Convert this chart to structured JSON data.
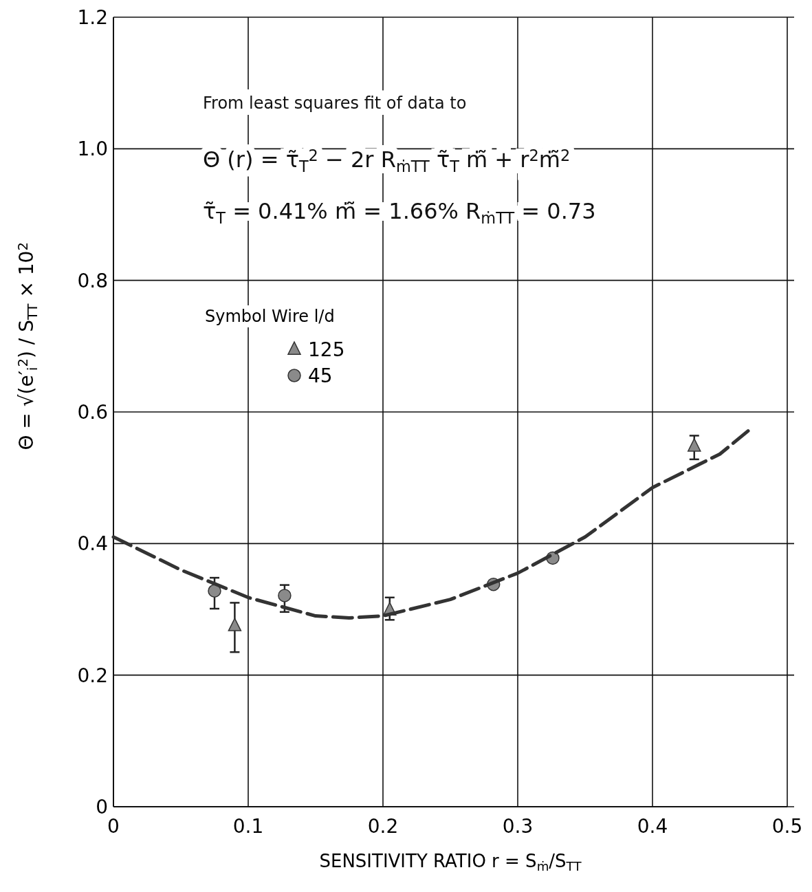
{
  "chart_data": {
    "type": "scatter",
    "xlabel": "SENSITIVITY RATIO   r = S$_{ṁ}$/S$_{TT}$",
    "ylabel": "Θ = √(e′$_{i}$$^{2}$) / S$_{TT}$  × 10$^{2}$",
    "legend_title": "Symbol   Wire l/d",
    "legend": "left",
    "annotations": [
      "From least squares fit of data to",
      "Θ (r) = τ̃$_{T}$$^{2}$ − 2r R$_{ṁTT}$ τ̃$_{T}$ ṁ̃ + r$^{2}$ṁ̃$^{2}$",
      "τ̃$_{T}$ = 0.41%    ṁ̃ = 1.66%    R$_{ṁTT}$ = 0.73"
    ],
    "xlim": [
      0,
      0.5
    ],
    "xticks": [
      0,
      0.1,
      0.2,
      0.3,
      0.4,
      0.5
    ],
    "ylim": [
      0,
      1.2
    ],
    "yticks": [
      0,
      0.2,
      0.4,
      0.6,
      0.8,
      {
        "value": 1,
        "label": "1.0"
      },
      1.2
    ],
    "grid": true,
    "series": [
      {
        "name": "125",
        "marker": "triangle",
        "color": "#8a8a8a",
        "x": [
          0.09,
          0.205,
          0.431
        ],
        "values": [
          0.275,
          0.299,
          0.548
        ],
        "errors": [
          [
            0.235,
            0.31
          ],
          [
            0.284,
            0.318
          ],
          [
            0.528,
            0.564
          ]
        ]
      },
      {
        "name": "45",
        "marker": "circle",
        "color": "#8a8a8a",
        "x": [
          0.075,
          0.127,
          0.282,
          0.326
        ],
        "values": [
          0.328,
          0.321,
          0.338,
          0.378
        ],
        "errors": [
          [
            0.301,
            0.348
          ],
          [
            0.296,
            0.337
          ],
          null,
          null
        ]
      },
      {
        "type": "line",
        "marker": "none",
        "line_style": "dashed",
        "color": "#333333",
        "x": [
          0,
          0.05,
          0.1,
          0.15,
          0.175,
          0.2,
          0.25,
          0.3,
          0.35,
          0.4,
          0.45,
          0.472
        ],
        "values": [
          0.41,
          0.36,
          0.318,
          0.29,
          0.287,
          0.29,
          0.315,
          0.355,
          0.41,
          0.485,
          0.536,
          0.573
        ]
      }
    ]
  }
}
